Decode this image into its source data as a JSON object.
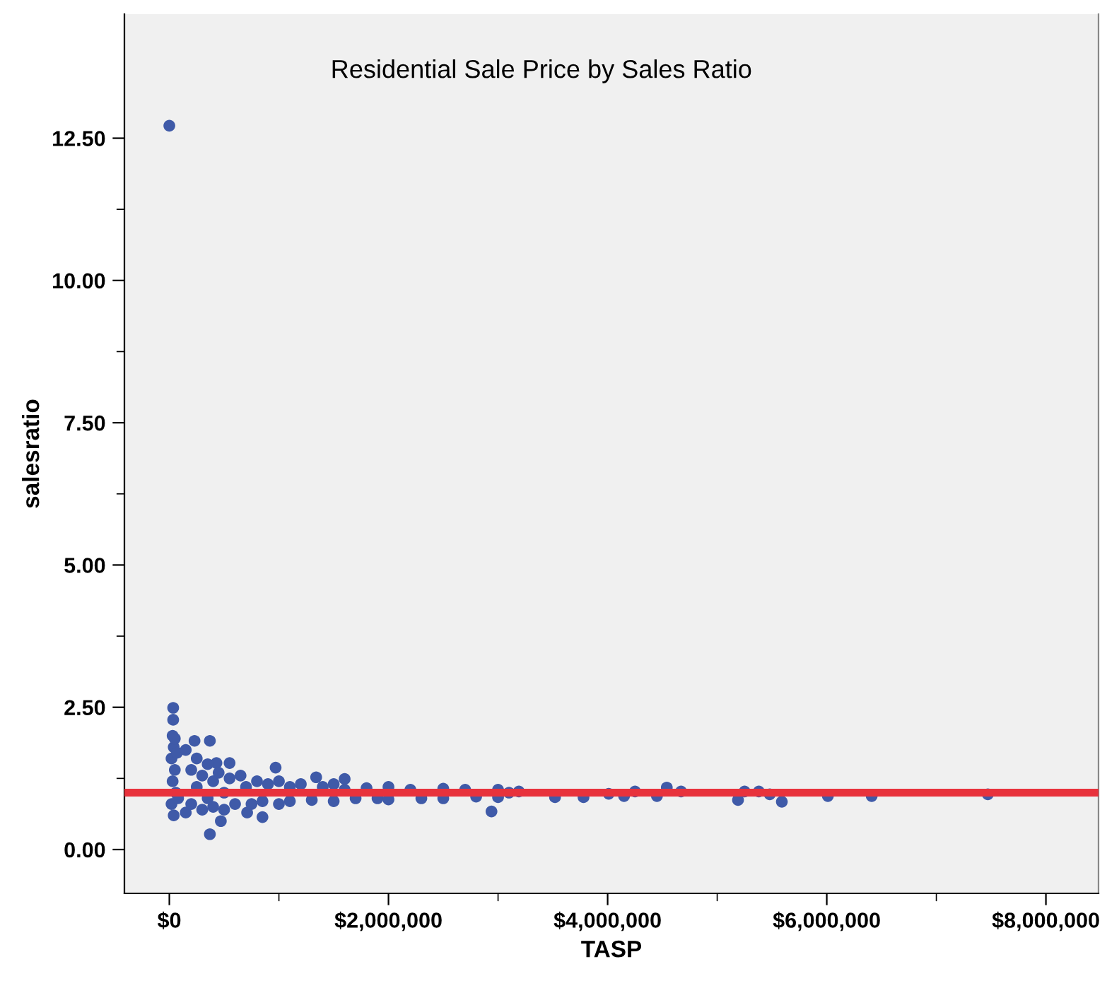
{
  "chart_data": {
    "type": "scatter",
    "title": "Residential Sale Price by Sales Ratio",
    "xlabel": "TASP",
    "ylabel": "salesratio",
    "series": [
      {
        "color": "#3f5aa8",
        "x": [
          0,
          35000,
          35000,
          30000,
          40000,
          20000,
          50000,
          30000,
          60000,
          20000,
          40000,
          70000,
          80000,
          50000,
          230000,
          370000,
          430000,
          550000,
          970000,
          1340000,
          1600000,
          370000,
          470000,
          850000,
          710000,
          2940000,
          150000,
          150000,
          200000,
          200000,
          250000,
          250000,
          300000,
          300000,
          350000,
          350000,
          400000,
          400000,
          450000,
          500000,
          500000,
          550000,
          600000,
          650000,
          700000,
          750000,
          800000,
          850000,
          900000,
          1000000,
          1000000,
          1100000,
          1100000,
          1200000,
          1300000,
          1400000,
          1500000,
          1500000,
          1600000,
          1700000,
          1800000,
          1900000,
          2000000,
          2000000,
          2200000,
          2300000,
          2500000,
          2500000,
          2700000,
          2800000,
          3000000,
          3000000,
          3100000,
          3190000,
          3520000,
          3780000,
          4010000,
          4150000,
          4250000,
          4450000,
          4540000,
          4670000,
          5190000,
          5250000,
          5380000,
          5480000,
          5590000,
          6010000,
          6410000,
          7470000
        ],
        "values": [
          12.72,
          2.49,
          2.28,
          2.0,
          1.8,
          1.6,
          1.4,
          1.2,
          1.0,
          0.8,
          0.6,
          1.7,
          0.9,
          1.95,
          1.91,
          1.91,
          1.52,
          1.52,
          1.44,
          1.27,
          1.24,
          0.27,
          0.5,
          0.57,
          0.65,
          0.67,
          1.75,
          0.65,
          1.4,
          0.8,
          1.6,
          1.1,
          1.3,
          0.7,
          1.5,
          0.9,
          1.2,
          0.75,
          1.35,
          1.0,
          0.7,
          1.25,
          0.8,
          1.3,
          1.1,
          0.8,
          1.2,
          0.85,
          1.15,
          1.2,
          0.8,
          1.1,
          0.85,
          1.15,
          0.87,
          1.1,
          1.15,
          0.85,
          1.05,
          0.9,
          1.08,
          0.9,
          1.1,
          0.88,
          1.05,
          0.9,
          1.07,
          0.9,
          1.05,
          0.93,
          1.05,
          0.92,
          1.0,
          1.02,
          0.92,
          0.92,
          0.98,
          0.94,
          1.02,
          0.94,
          1.09,
          1.02,
          0.87,
          1.02,
          1.02,
          0.97,
          0.84,
          0.94,
          0.94,
          0.97
        ]
      }
    ],
    "ref_lines": [
      {
        "axis": "y",
        "value": 1.0,
        "color": "#e8323c"
      }
    ],
    "xlim": [
      -410000,
      8480000
    ],
    "ylim": [
      -0.77,
      14.68
    ],
    "xticks": [
      {
        "value": 0,
        "label": "$0"
      },
      {
        "value": 2000000,
        "label": "$2,000,000"
      },
      {
        "value": 4000000,
        "label": "$4,000,000"
      },
      {
        "value": 6000000,
        "label": "$6,000,000"
      },
      {
        "value": 8000000,
        "label": "$8,000,000"
      }
    ],
    "yticks": [
      {
        "value": 0,
        "label": "0.00"
      },
      {
        "value": 2.5,
        "label": "2.50"
      },
      {
        "value": 5,
        "label": "5.00"
      },
      {
        "value": 7.5,
        "label": "7.50"
      },
      {
        "value": 10,
        "label": "10.00"
      },
      {
        "value": 12.5,
        "label": "12.50"
      }
    ],
    "grid": false,
    "legend": false,
    "marker": "circle"
  }
}
